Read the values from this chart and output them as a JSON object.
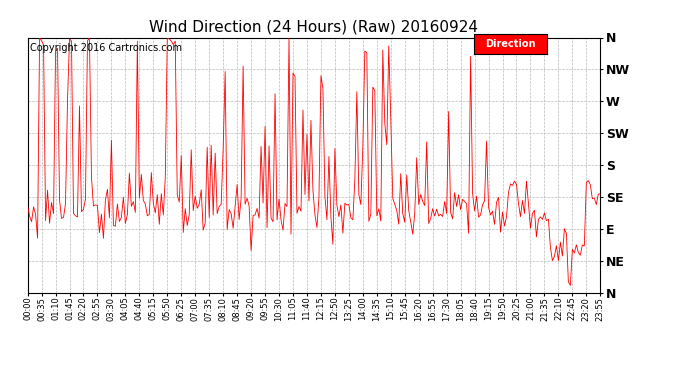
{
  "title": "Wind Direction (24 Hours) (Raw) 20160924",
  "copyright": "Copyright 2016 Cartronics.com",
  "legend_label": "Direction",
  "legend_bg": "#ff0000",
  "legend_text_color": "#ffffff",
  "line_color": "#ff0000",
  "bg_color": "#ffffff",
  "grid_color": "#bbbbbb",
  "ytick_labels": [
    "N",
    "NE",
    "E",
    "SE",
    "S",
    "SW",
    "W",
    "NW",
    "N"
  ],
  "ytick_values": [
    0,
    45,
    90,
    135,
    180,
    225,
    270,
    315,
    360
  ],
  "ylim": [
    0,
    360
  ],
  "title_fontsize": 11,
  "copyright_fontsize": 7,
  "axis_label_fontsize": 9,
  "xtick_fontsize": 6
}
